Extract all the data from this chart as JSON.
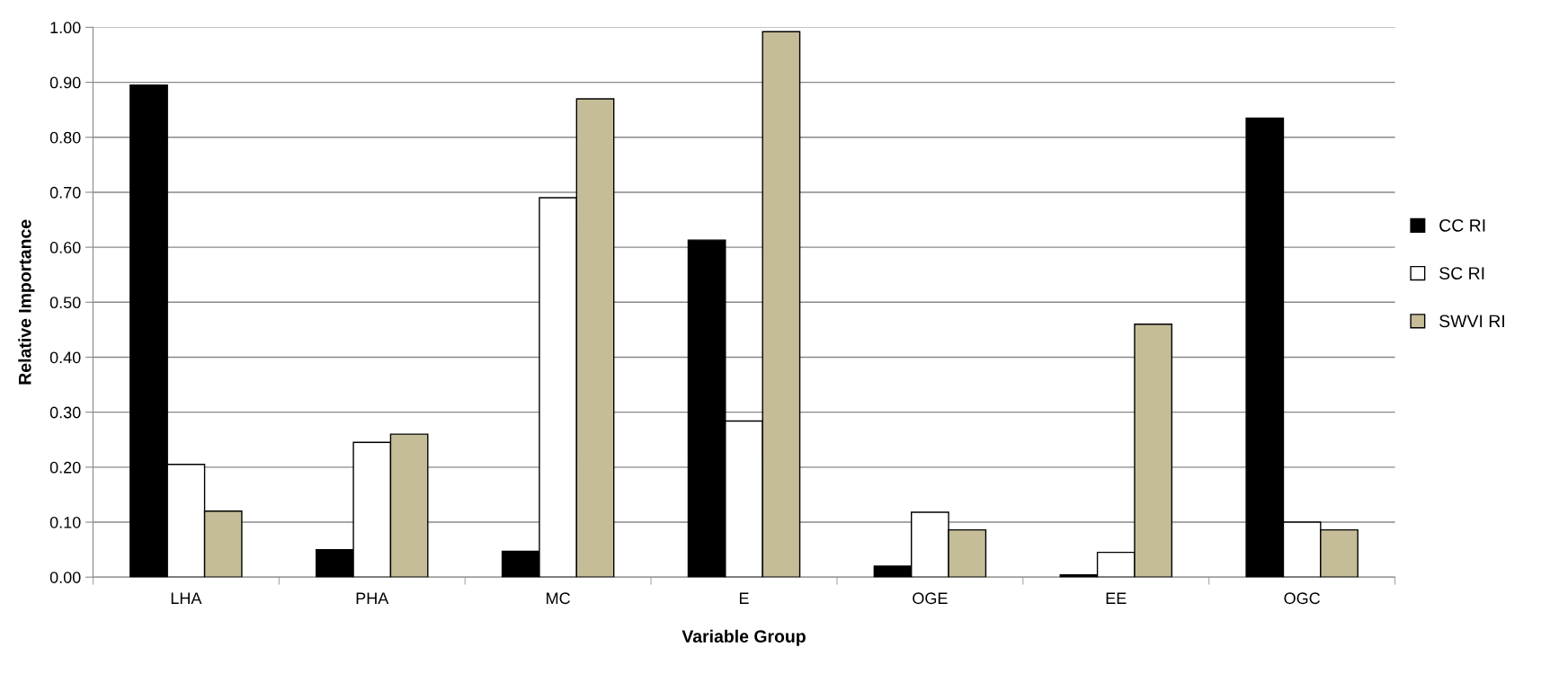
{
  "chart_data": {
    "type": "bar",
    "xlabel": "Variable Group",
    "ylabel": "Relative Importance",
    "categories": [
      "LHA",
      "PHA",
      "MC",
      "E",
      "OGE",
      "EE",
      "OGC"
    ],
    "series": [
      {
        "name": "CC RI",
        "color": "#000000",
        "values": [
          0.895,
          0.05,
          0.047,
          0.613,
          0.02,
          0.004,
          0.835
        ]
      },
      {
        "name": "SC RI",
        "color": "#ffffff",
        "values": [
          0.205,
          0.245,
          0.69,
          0.284,
          0.118,
          0.045,
          0.1
        ]
      },
      {
        "name": "SWVI RI",
        "color": "#c4bd97",
        "values": [
          0.12,
          0.26,
          0.87,
          0.992,
          0.086,
          0.46,
          0.086
        ]
      }
    ],
    "ylim": [
      0,
      1
    ],
    "yticks": [
      {
        "value": 0,
        "label": "0.00"
      },
      {
        "value": 0.1,
        "label": "0.10"
      },
      {
        "value": 0.2,
        "label": "0.20"
      },
      {
        "value": 0.3,
        "label": "0.30"
      },
      {
        "value": 0.4,
        "label": "0.40"
      },
      {
        "value": 0.5,
        "label": "0.50"
      },
      {
        "value": 0.6,
        "label": "0.60"
      },
      {
        "value": 0.7,
        "label": "0.70"
      },
      {
        "value": 0.8,
        "label": "0.80"
      },
      {
        "value": 0.9,
        "label": "0.90"
      },
      {
        "value": 1,
        "label": "1.00"
      }
    ],
    "grid": "y",
    "legend": "right"
  }
}
